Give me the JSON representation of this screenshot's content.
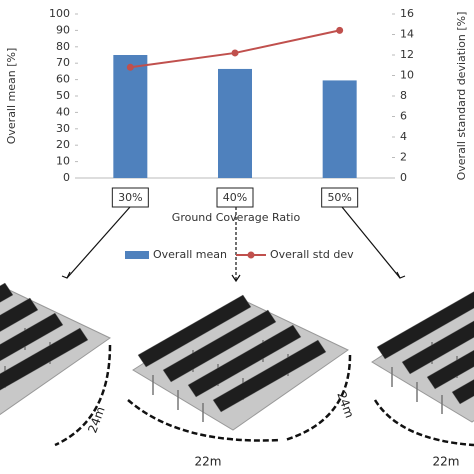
{
  "chart_data": {
    "type": "bar",
    "categories": [
      "30%",
      "40%",
      "50%"
    ],
    "xlabel": "Ground Coverage Ratio",
    "ylabel": "Overall mean [%]",
    "y2label": "Overall standard deviation [%]",
    "series": [
      {
        "name": "Overall mean",
        "type": "bar",
        "color": "#4f81bd",
        "values": [
          75,
          66.5,
          59.5
        ]
      },
      {
        "name": "Overall std dev",
        "type": "line",
        "color": "#c0504d",
        "axis": "y2",
        "values": [
          10.8,
          12.2,
          14.4
        ]
      }
    ],
    "ylim": [
      0,
      100
    ],
    "yticks": [
      0,
      10,
      20,
      30,
      40,
      50,
      60,
      70,
      80,
      90,
      100
    ],
    "y2lim": [
      0,
      16
    ],
    "y2ticks": [
      0,
      2,
      4,
      6,
      8,
      10,
      12,
      14,
      16
    ],
    "legend": "bottom",
    "annotations": [
      "24m",
      "24m",
      "22m",
      "22m"
    ]
  }
}
